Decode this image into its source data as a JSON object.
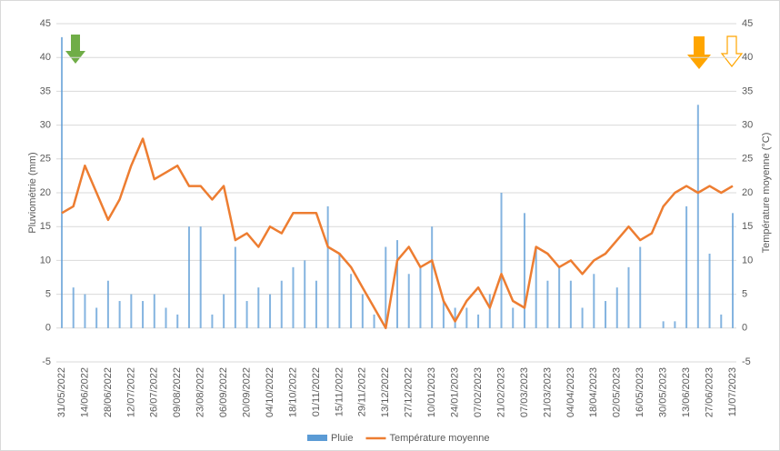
{
  "chart_data": {
    "type": "bar-line",
    "categories": [
      "31/05/2022",
      null,
      "14/06/2022",
      null,
      "28/06/2022",
      null,
      "12/07/2022",
      null,
      "26/07/2022",
      null,
      "09/08/2022",
      null,
      "23/08/2022",
      null,
      "06/09/2022",
      null,
      "20/09/2022",
      null,
      "04/10/2022",
      null,
      "18/10/2022",
      null,
      "01/11/2022",
      null,
      "15/11/2022",
      null,
      "29/11/2022",
      null,
      "13/12/2022",
      null,
      "27/12/2022",
      null,
      "10/01/2023",
      null,
      "24/01/2023",
      null,
      "07/02/2023",
      null,
      "21/02/2023",
      null,
      "07/03/2023",
      null,
      "21/03/2023",
      null,
      "04/04/2023",
      null,
      "18/04/2023",
      null,
      "02/05/2023",
      null,
      "16/05/2023",
      null,
      "30/05/2023",
      null,
      "13/06/2023",
      null,
      "27/06/2023",
      null,
      "11/07/2023"
    ],
    "series": [
      {
        "name": "Pluie",
        "color": "#5b9bd5",
        "kind": "bar",
        "values": [
          43,
          6,
          5,
          3,
          7,
          4,
          5,
          4,
          5,
          3,
          2,
          15,
          15,
          2,
          5,
          12,
          4,
          6,
          5,
          7,
          9,
          10,
          7,
          18,
          11,
          8,
          5,
          2,
          12,
          13,
          8,
          9,
          15,
          4,
          3,
          3,
          2,
          5,
          20,
          3,
          17,
          12,
          7,
          9,
          7,
          3,
          8,
          4,
          6,
          9,
          12,
          0,
          1,
          1,
          18,
          33,
          11,
          2,
          17
        ]
      },
      {
        "name": "Température moyenne",
        "color": "#ed7d31",
        "kind": "line",
        "axis": "y2",
        "values": [
          17,
          18,
          24,
          20,
          16,
          19,
          24,
          28,
          22,
          23,
          24,
          21,
          21,
          19,
          21,
          13,
          14,
          12,
          15,
          14,
          17,
          17,
          17,
          12,
          11,
          9,
          6,
          3,
          0,
          10,
          12,
          9,
          10,
          4,
          1,
          4,
          6,
          3,
          8,
          4,
          3,
          12,
          11,
          9,
          10,
          8,
          10,
          11,
          13,
          15,
          13,
          14,
          18,
          20,
          21,
          20,
          21,
          20,
          21
        ]
      }
    ],
    "ylabel": "Pluviométrie (mm)",
    "y2label": "Température moyenne (°C)",
    "ylim": [
      -5,
      45
    ],
    "yticks": [
      -5,
      0,
      5,
      10,
      15,
      20,
      25,
      30,
      35,
      40,
      45
    ],
    "y2lim": [
      -5,
      45
    ],
    "y2ticks": [
      -5,
      0,
      5,
      10,
      15,
      20,
      25,
      30,
      35,
      40,
      45
    ],
    "grid": true
  }
}
